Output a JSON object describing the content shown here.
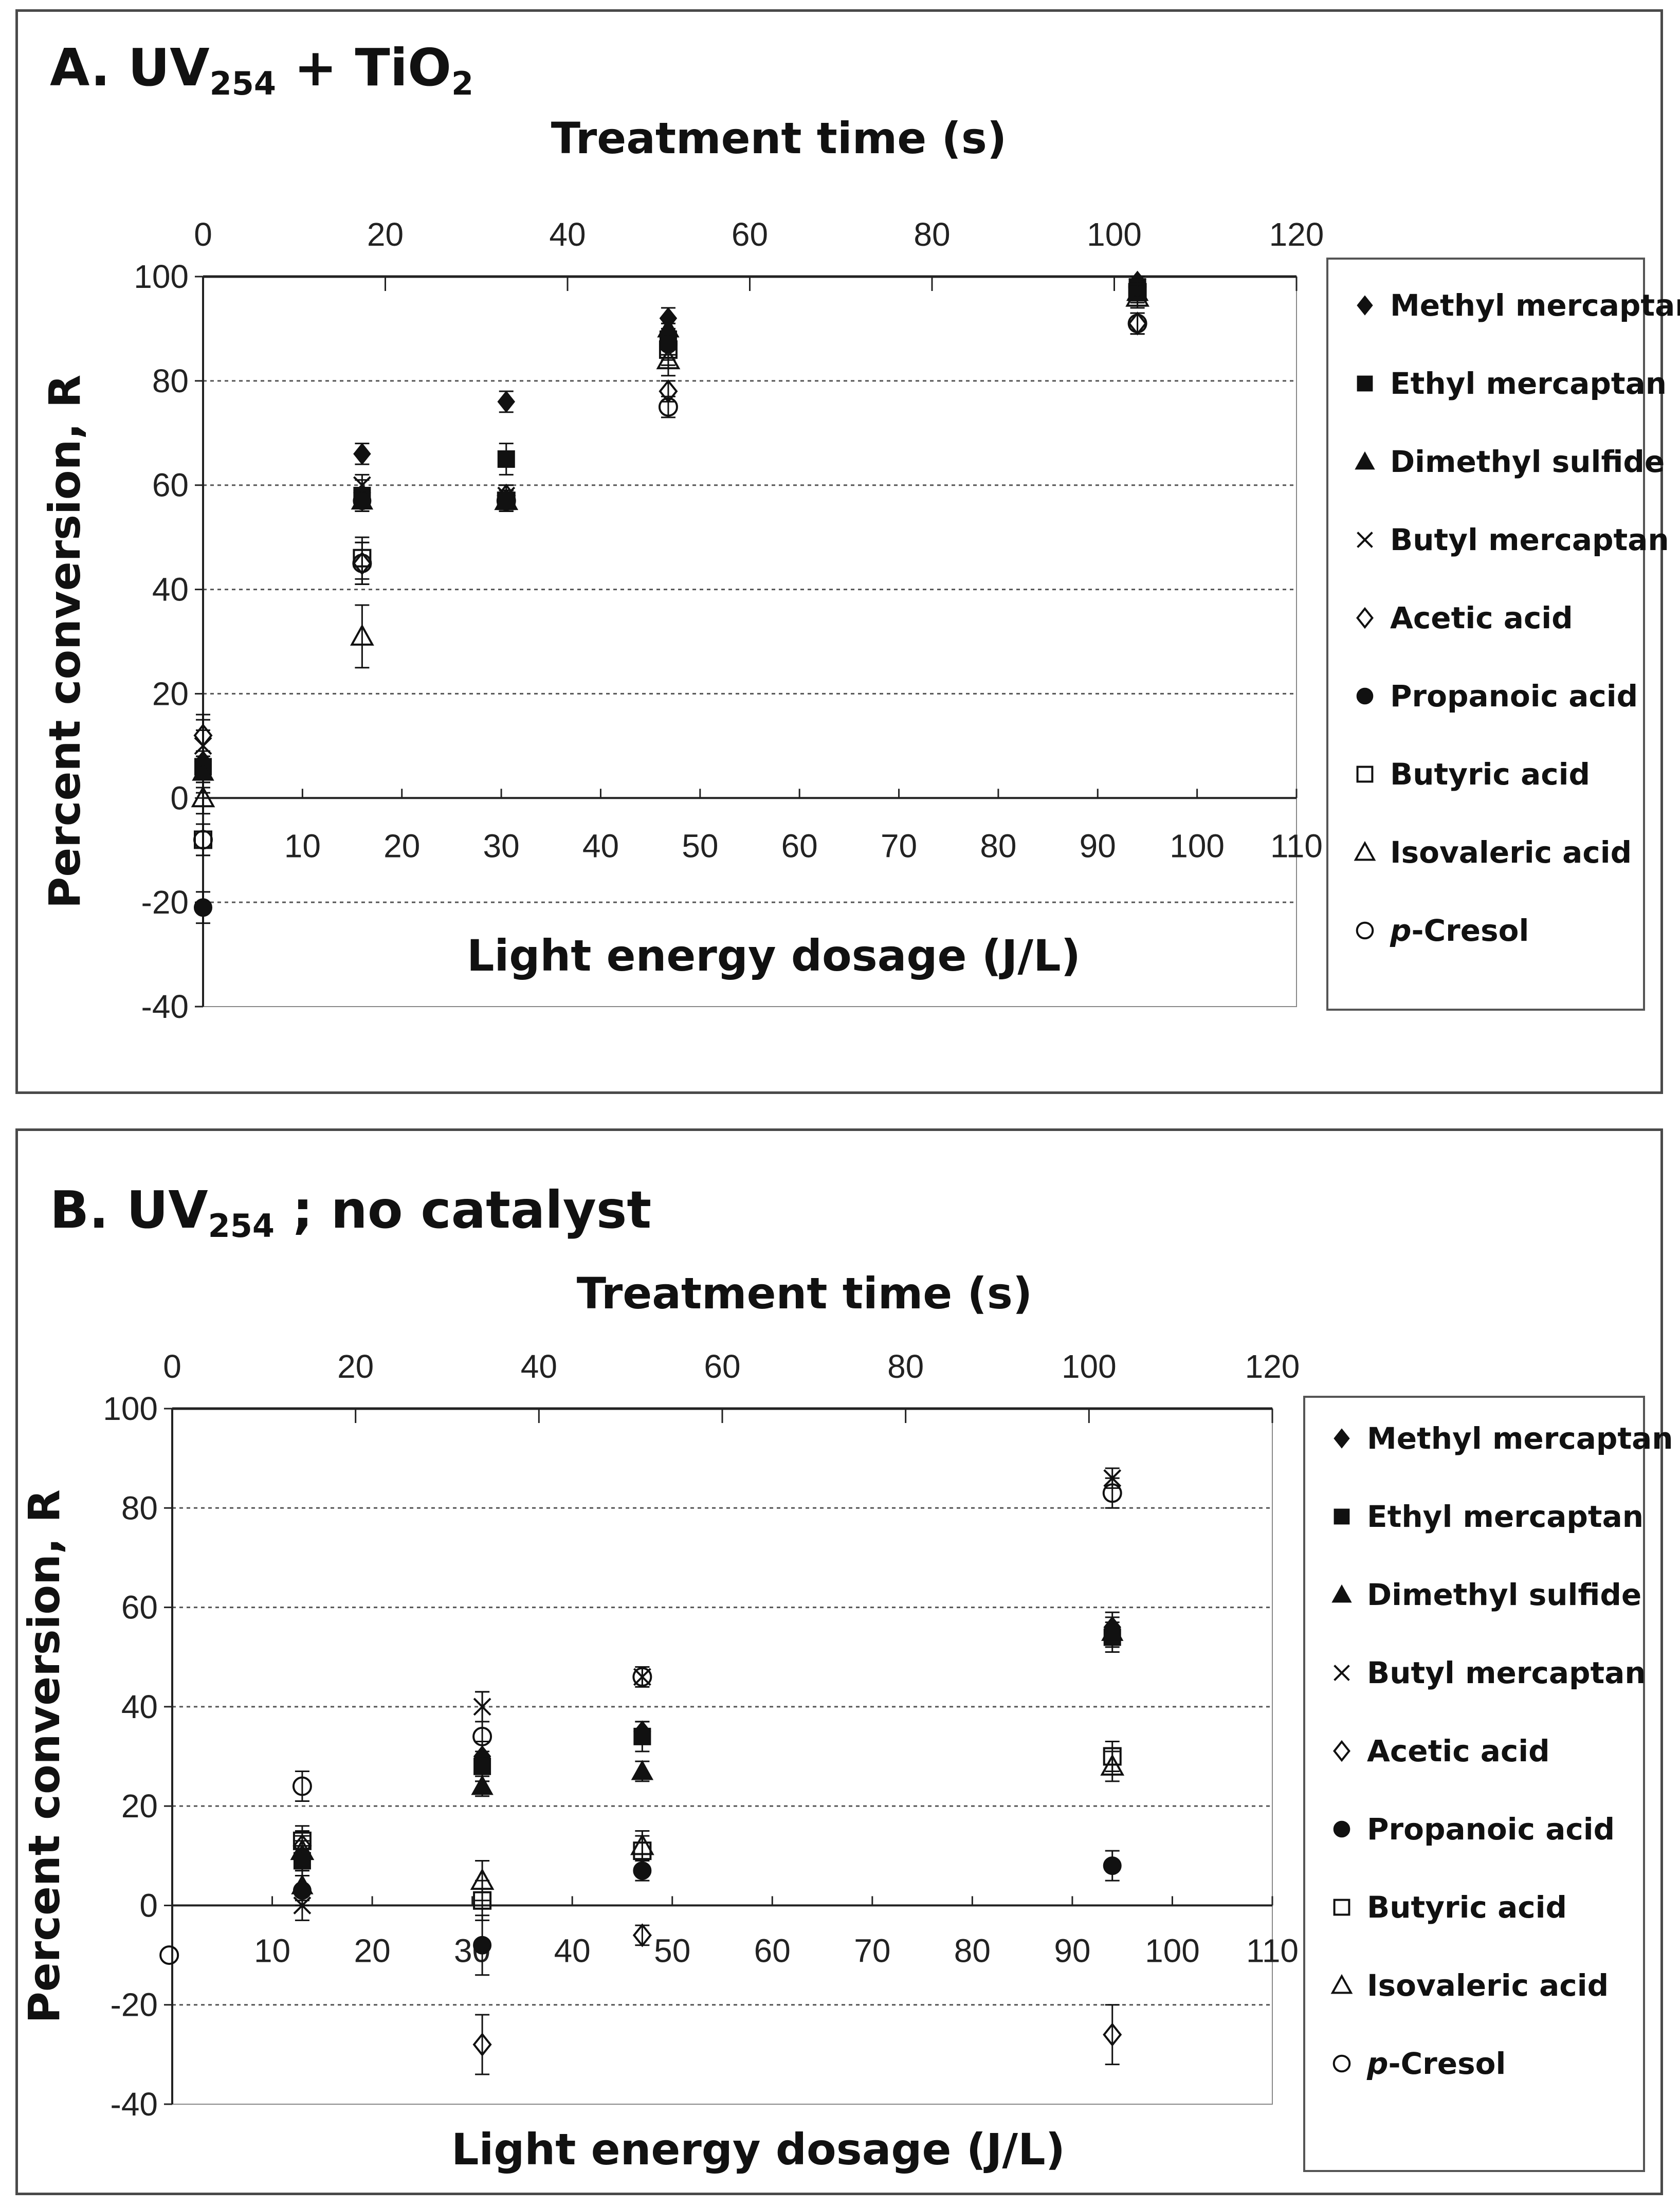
{
  "legend_entries": [
    {
      "name": "Methyl mercaptan",
      "marker": "diamond-filled"
    },
    {
      "name": "Ethyl mercaptan",
      "marker": "square-filled"
    },
    {
      "name": "Dimethyl sulfide",
      "marker": "triangle-filled"
    },
    {
      "name": "Butyl mercaptan",
      "marker": "cross"
    },
    {
      "name": "Acetic acid",
      "marker": "diamond-open"
    },
    {
      "name": "Propanoic acid",
      "marker": "circle-filled"
    },
    {
      "name": "Butyric acid",
      "marker": "square-open"
    },
    {
      "name": "Isovaleric acid",
      "marker": "triangle-open"
    },
    {
      "name": "p-Cresol",
      "marker": "circle-open",
      "italic_prefix": "p",
      "suffix": "-Cresol"
    }
  ],
  "chart_data": [
    {
      "panel": "A",
      "type": "scatter",
      "title": "A. UV254 + TiO2",
      "title_parts": {
        "main": "A. UV",
        "sub": "254",
        "mid": " + TiO",
        "sub2": "2"
      },
      "top_axis_label": "Treatment time (s)",
      "top_ticks": [
        "0",
        "20",
        "40",
        "60",
        "80",
        "100",
        "120"
      ],
      "top_lim": [
        0,
        120
      ],
      "xlabel": "Light energy dosage (J/L)",
      "x_ticks": [
        "10",
        "20",
        "30",
        "40",
        "50",
        "60",
        "70",
        "80",
        "90",
        "100",
        "110"
      ],
      "xlim": [
        0,
        110
      ],
      "ylabel": "Percent conversion, R",
      "y_ticks": [
        "-40",
        "-20",
        "0",
        "20",
        "40",
        "60",
        "80",
        "100"
      ],
      "ylim": [
        -40,
        100
      ],
      "series": [
        {
          "name": "Methyl mercaptan",
          "points": [
            [
              0,
              7,
              6
            ],
            [
              16,
              66,
              2
            ],
            [
              30.5,
              76,
              2
            ],
            [
              46.8,
              92,
              2
            ],
            [
              94,
              99,
              1
            ]
          ]
        },
        {
          "name": "Ethyl mercaptan",
          "points": [
            [
              0,
              6,
              3
            ],
            [
              16,
              58,
              3
            ],
            [
              30.5,
              65,
              3
            ],
            [
              46.8,
              88,
              3
            ],
            [
              94,
              98,
              2
            ]
          ]
        },
        {
          "name": "Dimethyl sulfide",
          "points": [
            [
              0,
              5,
              3
            ],
            [
              16,
              57,
              2
            ],
            [
              30.5,
              57,
              2
            ],
            [
              46.8,
              90,
              2
            ],
            [
              94,
              97,
              1
            ]
          ]
        },
        {
          "name": "Butyl mercaptan",
          "points": [
            [
              0,
              10,
              5
            ],
            [
              16,
              60,
              2
            ],
            [
              30.5,
              58,
              2
            ],
            [
              46.8,
              88,
              3
            ],
            [
              94,
              98,
              2
            ]
          ]
        },
        {
          "name": "Acetic acid",
          "points": [
            [
              0,
              12,
              4
            ],
            [
              16,
              45,
              4
            ],
            [
              30.5,
              58,
              2
            ],
            [
              46.8,
              78,
              2
            ],
            [
              94,
              91,
              2
            ]
          ]
        },
        {
          "name": "Propanoic acid",
          "points": [
            [
              0,
              -21,
              3
            ],
            [
              16,
              57,
              2
            ],
            [
              30.5,
              57,
              2
            ],
            [
              46.8,
              87,
              3
            ],
            [
              94,
              98,
              1
            ]
          ]
        },
        {
          "name": "Butyric acid",
          "points": [
            [
              0,
              -8,
              3
            ],
            [
              16,
              46,
              4
            ],
            [
              30.5,
              57,
              2
            ],
            [
              46.8,
              86,
              3
            ],
            [
              94,
              97,
              2
            ]
          ]
        },
        {
          "name": "Isovaleric acid",
          "points": [
            [
              0,
              0,
              3
            ],
            [
              16,
              31,
              6
            ],
            [
              30.5,
              57,
              2
            ],
            [
              46.8,
              84,
              3
            ],
            [
              94,
              96,
              2
            ]
          ]
        },
        {
          "name": "p-Cresol",
          "points": [
            [
              0,
              -8,
              3
            ],
            [
              16,
              45,
              4
            ],
            [
              30.5,
              57,
              2
            ],
            [
              46.8,
              75,
              2
            ],
            [
              94,
              91,
              2
            ]
          ]
        }
      ]
    },
    {
      "panel": "B",
      "type": "scatter",
      "title": "B. UV254 ; no catalyst",
      "title_parts": {
        "main": "B. UV",
        "sub": "254",
        "mid": " ; no catalyst",
        "sub2": ""
      },
      "top_axis_label": "Treatment time (s)",
      "top_ticks": [
        "0",
        "20",
        "40",
        "60",
        "80",
        "100",
        "120"
      ],
      "top_lim": [
        0,
        120
      ],
      "xlabel": "Light energy dosage (J/L)",
      "x_ticks": [
        "10",
        "20",
        "30",
        "40",
        "50",
        "60",
        "70",
        "80",
        "90",
        "100",
        "110"
      ],
      "xlim": [
        0,
        110
      ],
      "ylabel": "Percent conversion, R",
      "y_ticks": [
        "-40",
        "-20",
        "0",
        "20",
        "40",
        "60",
        "80",
        "100"
      ],
      "ylim": [
        -40,
        100
      ],
      "series": [
        {
          "name": "Methyl mercaptan",
          "points": [
            [
              13,
              10,
              3
            ],
            [
              31,
              30,
              3
            ],
            [
              47,
              35,
              2
            ],
            [
              94,
              56,
              3
            ]
          ]
        },
        {
          "name": "Ethyl mercaptan",
          "points": [
            [
              13,
              9,
              3
            ],
            [
              31,
              28,
              3
            ],
            [
              47,
              34,
              3
            ],
            [
              94,
              54,
              3
            ]
          ]
        },
        {
          "name": "Dimethyl sulfide",
          "points": [
            [
              13,
              4,
              3
            ],
            [
              31,
              24,
              2
            ],
            [
              47,
              27,
              2
            ],
            [
              94,
              55,
              3
            ]
          ]
        },
        {
          "name": "Butyl mercaptan",
          "points": [
            [
              13,
              0,
              3
            ],
            [
              31,
              40,
              3
            ],
            [
              47,
              46,
              2
            ],
            [
              94,
              86,
              2
            ]
          ]
        },
        {
          "name": "Acetic acid",
          "points": [
            [
              13,
              12,
              3
            ],
            [
              31,
              -28,
              6
            ],
            [
              47,
              -6,
              2
            ],
            [
              94,
              -26,
              6
            ]
          ]
        },
        {
          "name": "Propanoic acid",
          "points": [
            [
              13,
              3,
              3
            ],
            [
              31,
              -8,
              6
            ],
            [
              47,
              7,
              2
            ],
            [
              94,
              8,
              3
            ]
          ]
        },
        {
          "name": "Butyric acid",
          "points": [
            [
              13,
              13,
              3
            ],
            [
              31,
              1,
              4
            ],
            [
              47,
              11,
              3
            ],
            [
              94,
              30,
              3
            ]
          ]
        },
        {
          "name": "Isovaleric acid",
          "points": [
            [
              13,
              11,
              3
            ],
            [
              31,
              5,
              4
            ],
            [
              47,
              12,
              3
            ],
            [
              94,
              28,
              3
            ]
          ]
        },
        {
          "name": "p-Cresol",
          "points": [
            [
              -0.3,
              -10,
              0
            ],
            [
              13,
              24,
              3
            ],
            [
              31,
              34,
              9
            ],
            [
              47,
              46,
              2
            ],
            [
              94,
              83,
              3
            ]
          ]
        }
      ]
    }
  ]
}
